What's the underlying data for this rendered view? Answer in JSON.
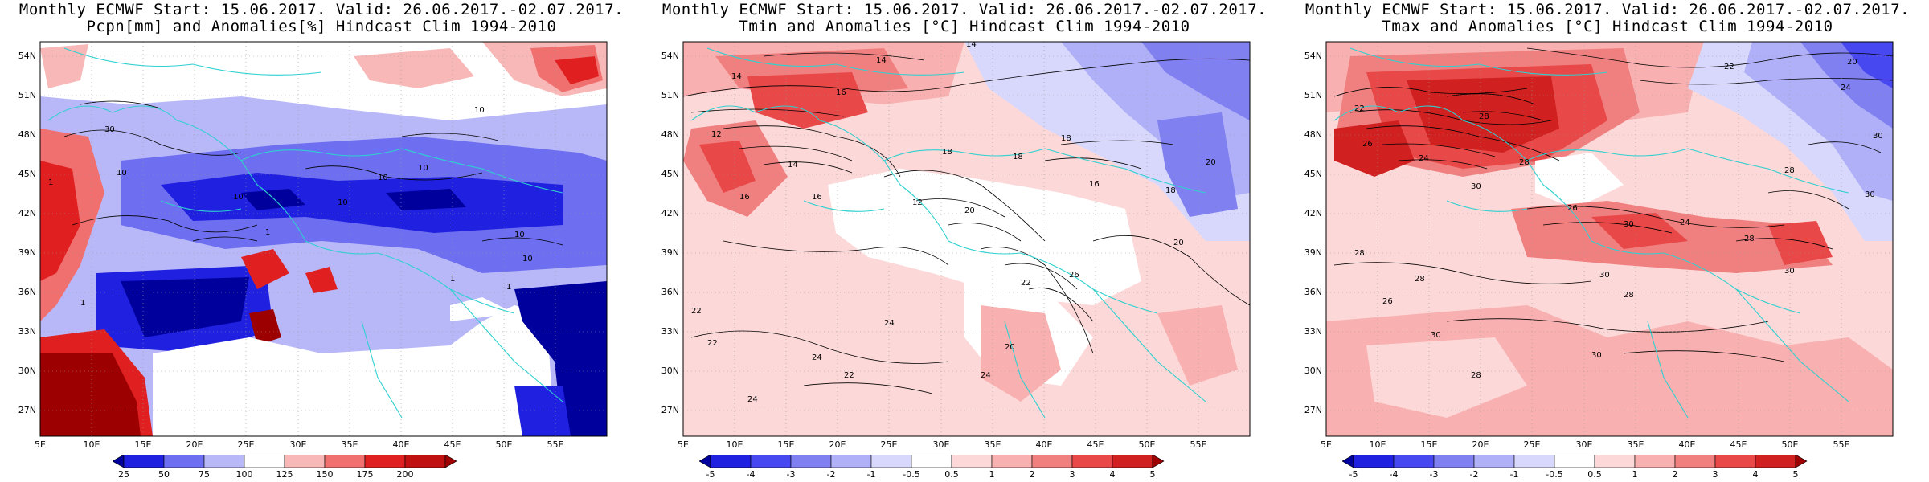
{
  "panels": [
    {
      "title1": "Monthly ECMWF Start: 15.06.2017. Valid: 26.06.2017.-02.07.2017.",
      "title2": "Pcpn[mm] and Anomalies[%] Hindcast Clim 1994-2010",
      "colorbar": [
        "25",
        "50",
        "75",
        "100",
        "125",
        "150",
        "175",
        "200"
      ],
      "contour_labels": [
        "30",
        "10",
        "10",
        "1",
        "10",
        "10",
        "10",
        "1",
        "10",
        "1",
        "10",
        "10",
        "1",
        "1"
      ]
    },
    {
      "title1": "Monthly ECMWF Start: 15.06.2017. Valid: 26.06.2017.-02.07.2017.",
      "title2": "Tmin and Anomalies [°C] Hindcast Clim 1994-2010",
      "colorbar": [
        "-5",
        "-4",
        "-3",
        "-2",
        "-1",
        "-0.5",
        "0.5",
        "1",
        "2",
        "3",
        "4",
        "5"
      ],
      "contour_labels": [
        "14",
        "14",
        "14",
        "16",
        "12",
        "18",
        "14",
        "16",
        "12",
        "20",
        "16",
        "18",
        "20",
        "22",
        "24",
        "20",
        "24",
        "22",
        "24",
        "26",
        "22",
        "22",
        "24",
        "16",
        "18",
        "20",
        "18"
      ]
    },
    {
      "title1": "Monthly ECMWF Start: 15.06.2017. Valid: 26.06.2017.-02.07.2017.",
      "title2": "Tmax and Anomalies [°C] Hindcast Clim 1994-2010",
      "colorbar": [
        "-5",
        "-4",
        "-3",
        "-2",
        "-1",
        "-0.5",
        "0.5",
        "1",
        "2",
        "3",
        "4",
        "5"
      ],
      "contour_labels": [
        "20",
        "22",
        "24",
        "22",
        "28",
        "26",
        "24",
        "30",
        "28",
        "30",
        "28",
        "26",
        "30",
        "30",
        "28",
        "24",
        "28",
        "28",
        "30",
        "26",
        "28",
        "30",
        "30",
        "28",
        "30"
      ]
    }
  ],
  "lat_labels": [
    "54N",
    "51N",
    "48N",
    "45N",
    "42N",
    "39N",
    "36N",
    "33N",
    "30N",
    "27N"
  ],
  "lon_labels": [
    "5E",
    "10E",
    "15E",
    "20E",
    "25E",
    "30E",
    "35E",
    "40E",
    "45E",
    "50E",
    "55E"
  ],
  "colors": {
    "coast": "#2fd0d0",
    "contour": "#000000",
    "precip_scale": [
      "#00009c",
      "#2020e0",
      "#6e6ef0",
      "#b8b8f8",
      "#ffffff",
      "#f8b8b8",
      "#f07070",
      "#e02020",
      "#9c0000"
    ],
    "temp_scale": [
      "#00009c",
      "#2020e0",
      "#4848f0",
      "#8080f0",
      "#b0b0f8",
      "#d8d8fc",
      "#ffffff",
      "#fcd8d8",
      "#f8b0b0",
      "#f08080",
      "#e84848",
      "#d02020",
      "#9c0000"
    ]
  }
}
